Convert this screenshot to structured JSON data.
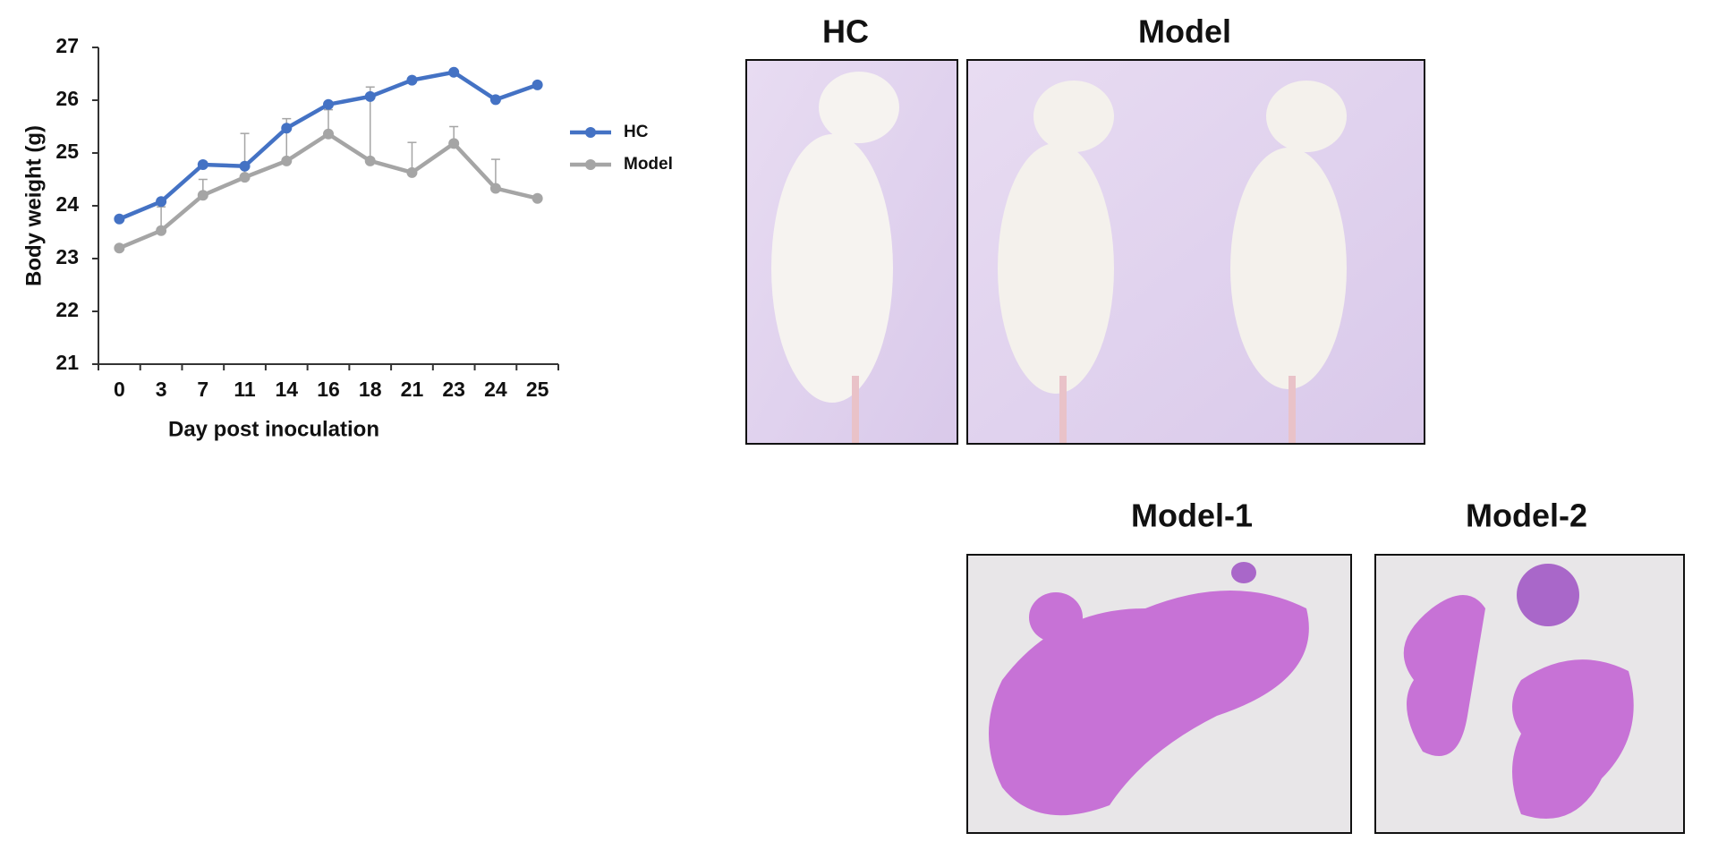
{
  "chart_data": {
    "type": "line",
    "x_label": "Day post inoculation",
    "y_label": "Body weight (g)",
    "categories": [
      "0",
      "3",
      "7",
      "11",
      "14",
      "16",
      "18",
      "21",
      "23",
      "24",
      "25"
    ],
    "series": [
      {
        "name": "HC",
        "color": "#4472c4",
        "values": [
          23.75,
          24.08,
          24.78,
          24.75,
          25.47,
          25.92,
          26.07,
          26.38,
          26.53,
          26.01,
          26.29
        ]
      },
      {
        "name": "Model",
        "color": "#a5a5a5",
        "values": [
          23.2,
          23.53,
          24.2,
          24.54,
          24.85,
          25.36,
          24.85,
          24.63,
          25.18,
          24.33,
          24.14
        ],
        "errors": [
          null,
          0.45,
          0.3,
          0.83,
          0.8,
          0.46,
          1.4,
          0.57,
          0.32,
          0.55,
          null
        ]
      }
    ],
    "ylim": [
      21,
      27
    ],
    "yticks": [
      21,
      22,
      23,
      24,
      25,
      26,
      27
    ],
    "legend": "right"
  },
  "panels": {
    "photo_titles": [
      "HC",
      "Model"
    ],
    "histology_titles": [
      "Model-1",
      "Model-2"
    ]
  }
}
